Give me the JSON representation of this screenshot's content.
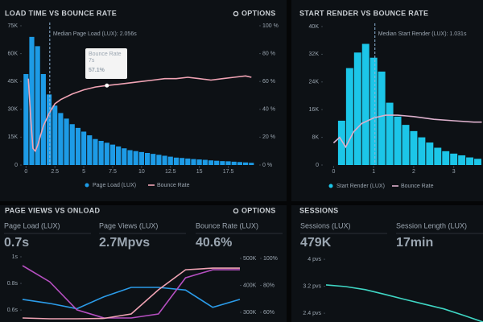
{
  "chart_data": [
    {
      "type": "histogram",
      "title": "LOAD TIME VS BOUNCE RATE",
      "options_label": "OPTIONS",
      "median": 2.056,
      "median_label": "Median Page Load (LUX): 2.056s",
      "annotation": {
        "title": "Bounce Rate",
        "subtitle": "7s",
        "value": "57.1%"
      },
      "bins": [
        -0.25,
        0.25,
        0.75,
        1.25,
        1.75,
        2.25,
        2.75,
        3.25,
        3.75,
        4.25,
        4.75,
        5.25,
        5.75,
        6.25,
        6.75,
        7.25,
        7.75,
        8.25,
        8.75,
        9.25,
        9.75,
        10.25,
        10.75,
        11.25,
        11.75,
        12.25,
        12.75,
        13.25,
        13.75,
        14.25,
        14.75,
        15.25,
        15.75,
        16.25,
        16.75,
        17.25,
        17.75,
        18.25,
        18.75,
        19.25,
        19.75
      ],
      "xlim": [
        -0.3,
        19.9
      ],
      "xticks": [
        0,
        2.5,
        5,
        7.5,
        10,
        12.5,
        15,
        17.5
      ],
      "ylim": [
        0,
        75000
      ],
      "yticks": [
        0,
        {
          "value": 15000,
          "label": "15K"
        },
        {
          "value": 30000,
          "label": "30K"
        },
        {
          "value": 45000,
          "label": "45K"
        },
        {
          "value": 60000,
          "label": "60K"
        },
        {
          "value": 75000,
          "label": "75K"
        }
      ],
      "y2lim": [
        0,
        100
      ],
      "y2ticks": [
        {
          "value": 0,
          "label": "0 %"
        },
        {
          "value": 20,
          "label": "20 %"
        },
        {
          "value": 40,
          "label": "40 %"
        },
        {
          "value": 60,
          "label": "60 %"
        },
        {
          "value": 80,
          "label": "80 %"
        },
        {
          "value": 100,
          "label": "100 %"
        }
      ],
      "series": [
        {
          "name": "Page Load (LUX)",
          "color": "#1d9be6",
          "values": [
            49000,
            69000,
            64000,
            49000,
            38000,
            32000,
            28000,
            25000,
            22000,
            20000,
            18000,
            16000,
            14000,
            13000,
            12000,
            11000,
            10000,
            9000,
            8000,
            7500,
            7000,
            6500,
            6000,
            5500,
            5000,
            4500,
            4000,
            3800,
            3500,
            3200,
            3000,
            2800,
            2500,
            2300,
            2100,
            2000,
            1800,
            1600,
            1400,
            1200
          ]
        },
        {
          "name": "Bounce Rate",
          "color": "#f0a3b4",
          "axis": "y2",
          "x": [
            0.2,
            0.4,
            0.6,
            0.8,
            1,
            1.5,
            2,
            2.5,
            3,
            4,
            5,
            6,
            7,
            8,
            9,
            10,
            11,
            12,
            13,
            14,
            15,
            16,
            17,
            18,
            19,
            19.5
          ],
          "values": [
            62,
            35,
            12,
            10,
            14,
            28,
            37,
            44,
            47,
            51,
            54,
            56,
            57.1,
            58,
            59,
            60,
            61,
            62,
            62,
            63,
            62,
            61,
            62,
            63,
            64,
            63
          ]
        }
      ]
    },
    {
      "type": "histogram",
      "title": "START RENDER VS BOUNCE RATE",
      "median": 1.031,
      "median_label": "Median Start Render (LUX): 1.031s",
      "bins": [
        0.1,
        0.3,
        0.5,
        0.7,
        0.9,
        1.1,
        1.3,
        1.5,
        1.7,
        1.9,
        2.1,
        2.3,
        2.5,
        2.7,
        2.9,
        3.1,
        3.3,
        3.5,
        3.7
      ],
      "xlim": [
        -0.25,
        3.73
      ],
      "xticks": [
        0,
        1,
        2,
        3
      ],
      "ylim": [
        0,
        40000
      ],
      "yticks": [
        0,
        {
          "value": 8000,
          "label": "8K"
        },
        {
          "value": 16000,
          "label": "16K"
        },
        {
          "value": 24000,
          "label": "24K"
        },
        {
          "value": 32000,
          "label": "32K"
        },
        {
          "value": 40000,
          "label": "40K"
        }
      ],
      "y2lim": [
        0,
        100
      ],
      "series": [
        {
          "name": "Start Render (LUX)",
          "color": "#1cc6e8",
          "values": [
            12800,
            28000,
            32500,
            35000,
            31000,
            27000,
            18000,
            14000,
            11600,
            9800,
            8000,
            6500,
            5000,
            4000,
            3300,
            2800,
            2200,
            1800
          ]
        },
        {
          "name": "Bounce Rate",
          "color": "#dcb0cc",
          "axis": "y2",
          "x": [
            0,
            0.15,
            0.3,
            0.5,
            0.7,
            1,
            1.3,
            1.6,
            2,
            2.5,
            3,
            3.5,
            3.7
          ],
          "values": [
            16,
            20,
            13,
            24,
            30,
            34,
            36,
            36,
            35,
            33,
            32,
            31,
            31
          ]
        }
      ]
    },
    {
      "type": "line",
      "title": "PAGE VIEWS VS ONLOAD",
      "options_label": "OPTIONS",
      "kpis": [
        {
          "label": "Page Load (LUX)",
          "value": "0.7s",
          "color": "#2b9be8"
        },
        {
          "label": "Page Views (LUX)",
          "value": "2.7Mpvs",
          "color": "#c458c4"
        },
        {
          "label": "Bounce Rate (LUX)",
          "value": "40.6%",
          "color": "#f7b3c2"
        }
      ],
      "categories": [
        null,
        null,
        null,
        null,
        null,
        null,
        null,
        null,
        null
      ],
      "ylim": [
        0.51,
        1.0
      ],
      "yticks": [
        {
          "value": 1,
          "label": "1s"
        },
        {
          "value": 0.8,
          "label": "0.8s"
        },
        {
          "value": 0.6,
          "label": "0.6s"
        }
      ],
      "y2lim": [
        264000,
        506000
      ],
      "y2ticks": [
        {
          "value": 500000,
          "label": "500K"
        },
        {
          "value": 400000,
          "label": "400K"
        },
        {
          "value": 300000,
          "label": "300K"
        }
      ],
      "y3lim": [
        52.8,
        101.2
      ],
      "y3ticks": [
        {
          "value": 100,
          "label": "100%"
        },
        {
          "value": 80,
          "label": "80%"
        },
        {
          "value": 60,
          "label": "60%"
        }
      ],
      "series": [
        {
          "color": "#2b9be8",
          "values": [
            0.68,
            0.65,
            0.61,
            0.7,
            0.77,
            0.77,
            0.75,
            0.62,
            0.68
          ]
        },
        {
          "color": "#b54fc0",
          "axis": "y2",
          "values": [
            473000,
            413000,
            309000,
            279000,
            279000,
            294000,
            428000,
            458000,
            458000
          ]
        },
        {
          "color": "#f0a3b4",
          "axis": "y3",
          "values": [
            55.8,
            55.2,
            55.2,
            55.5,
            58.8,
            76.7,
            91.6,
            92.8,
            92.8
          ]
        }
      ]
    },
    {
      "type": "line",
      "title": "SESSIONS",
      "kpis": [
        {
          "label": "Sessions (LUX)",
          "value": "479K",
          "color": "#8ef0b4"
        },
        {
          "label": "Session Length (LUX)",
          "value": "17min",
          "color": "#c0f07a"
        }
      ],
      "categories": [
        null,
        null,
        null,
        null,
        null,
        null,
        null,
        null,
        null
      ],
      "ylim": [
        2.14,
        4.17
      ],
      "yticks": [
        {
          "value": 4,
          "label": "4 pvs"
        },
        {
          "value": 3.2,
          "label": "3.2 pvs"
        },
        {
          "value": 2.4,
          "label": "2.4 pvs"
        }
      ],
      "series": [
        {
          "color": "#3fd6c4",
          "values": [
            3.24,
            3.19,
            3.1,
            2.96,
            2.81,
            2.67,
            2.53,
            2.34,
            2.14
          ]
        }
      ]
    }
  ]
}
